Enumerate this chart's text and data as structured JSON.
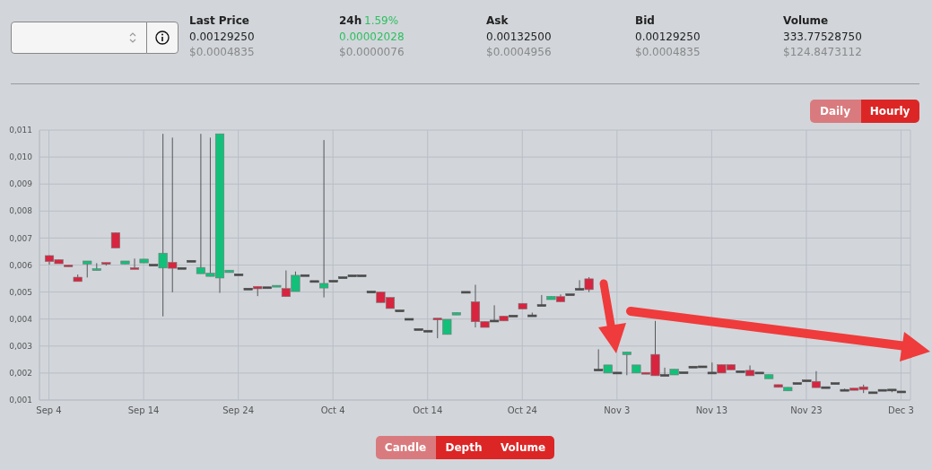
{
  "chart_data": {
    "type": "candlestick",
    "annotations": [
      "Last Price",
      "0.00129250",
      "$0.0004835",
      "24h",
      "1.59%",
      "0.00002028",
      "$0.0000076",
      "Ask",
      "0.00132500",
      "$0.0004956",
      "Bid",
      "0.00129250",
      "$0.0004835",
      "Volume",
      "333.77528750",
      "$124.8473112",
      "Daily",
      "Hourly",
      "Candle",
      "Depth",
      "Volume"
    ],
    "x": [
      "--09-04",
      "--09-05",
      "--09-06",
      "--09-07",
      "--09-08",
      "--09-09",
      "--09-10",
      "--09-11",
      "--09-12",
      "--09-13",
      "--09-14",
      "--09-15",
      "--09-16",
      "--09-17",
      "--09-18",
      "--09-19",
      "--09-20",
      "--09-21",
      "--09-22",
      "--09-23",
      "--09-24",
      "--09-25",
      "--09-26",
      "--09-27",
      "--09-28",
      "--09-29",
      "--09-30",
      "--10-01",
      "--10-02",
      "--10-03",
      "--10-04",
      "--10-05",
      "--10-06",
      "--10-07",
      "--10-08",
      "--10-09",
      "--10-10",
      "--10-11",
      "--10-12",
      "--10-13",
      "--10-14",
      "--10-15",
      "--10-16",
      "--10-17",
      "--10-18",
      "--10-19",
      "--10-20",
      "--10-21",
      "--10-22",
      "--10-23",
      "--10-24",
      "--10-25",
      "--10-26",
      "--10-27",
      "--10-28",
      "--10-29",
      "--10-30",
      "--10-31",
      "--11-01",
      "--11-02",
      "--11-03",
      "--11-04",
      "--11-05",
      "--11-06",
      "--11-07",
      "--11-08",
      "--11-09",
      "--11-10",
      "--11-11",
      "--11-12",
      "--11-13",
      "--11-14",
      "--11-15",
      "--11-16",
      "--11-17",
      "--11-18",
      "--11-19",
      "--11-20",
      "--11-21",
      "--11-22",
      "--11-23",
      "--11-24",
      "--11-25",
      "--11-26",
      "--11-27",
      "--11-28",
      "--11-29",
      "--11-30",
      "--12-01",
      "--12-02",
      "--12-03"
    ],
    "ohlc": [
      [
        0.00635,
        0.00636,
        0.00602,
        0.00613
      ],
      [
        0.0062,
        0.0062,
        0.00605,
        0.00605
      ],
      [
        0.006,
        0.006,
        0.00594,
        0.00594
      ],
      [
        0.00555,
        0.00565,
        0.00539,
        0.00539
      ],
      [
        0.00604,
        0.00615,
        0.00554,
        0.00615
      ],
      [
        0.0058,
        0.00607,
        0.0058,
        0.00586
      ],
      [
        0.00609,
        0.00609,
        0.00598,
        0.00603
      ],
      [
        0.0072,
        0.0072,
        0.00663,
        0.00663
      ],
      [
        0.00604,
        0.00615,
        0.00604,
        0.00615
      ],
      [
        0.00589,
        0.00624,
        0.00585,
        0.00585
      ],
      [
        0.00608,
        0.00622,
        0.00608,
        0.00622
      ],
      [
        0.006,
        0.006,
        0.00599,
        0.00599
      ],
      [
        0.00589,
        0.01086,
        0.0041,
        0.00644
      ],
      [
        0.0061,
        0.01072,
        0.00499,
        0.00588
      ],
      [
        0.00588,
        0.00588,
        0.00587,
        0.00587
      ],
      [
        0.00614,
        0.00614,
        0.00614,
        0.00614
      ],
      [
        0.00568,
        0.01086,
        0.00568,
        0.00591
      ],
      [
        0.00558,
        0.01072,
        0.00558,
        0.0057
      ],
      [
        0.00552,
        0.01086,
        0.00497,
        0.01086
      ],
      [
        0.00572,
        0.00581,
        0.00572,
        0.00581
      ],
      [
        0.00564,
        0.00564,
        0.00564,
        0.00564
      ],
      [
        0.00511,
        0.00511,
        0.00511,
        0.00511
      ],
      [
        0.00521,
        0.00521,
        0.00485,
        0.00512
      ],
      [
        0.00516,
        0.00516,
        0.00516,
        0.00516
      ],
      [
        0.00519,
        0.00524,
        0.00519,
        0.00524
      ],
      [
        0.00513,
        0.0058,
        0.00483,
        0.00483
      ],
      [
        0.00502,
        0.00576,
        0.00502,
        0.00562
      ],
      [
        0.00561,
        0.00561,
        0.00561,
        0.00561
      ],
      [
        0.00539,
        0.00539,
        0.00539,
        0.00539
      ],
      [
        0.00515,
        0.01063,
        0.0048,
        0.00532
      ],
      [
        0.0054,
        0.0054,
        0.0054,
        0.0054
      ],
      [
        0.00553,
        0.00553,
        0.00553,
        0.00553
      ],
      [
        0.0056,
        0.0056,
        0.0056,
        0.0056
      ],
      [
        0.0056,
        0.0056,
        0.0056,
        0.0056
      ],
      [
        0.005,
        0.005,
        0.005,
        0.005
      ],
      [
        0.005,
        0.005,
        0.00461,
        0.00461
      ],
      [
        0.0048,
        0.0048,
        0.00439,
        0.00439
      ],
      [
        0.0043,
        0.0043,
        0.0043,
        0.0043
      ],
      [
        0.00399,
        0.00399,
        0.00399,
        0.00399
      ],
      [
        0.00361,
        0.00361,
        0.00361,
        0.00361
      ],
      [
        0.00355,
        0.00355,
        0.00355,
        0.00355
      ],
      [
        0.00402,
        0.00402,
        0.00329,
        0.00398
      ],
      [
        0.00343,
        0.00399,
        0.00343,
        0.00399
      ],
      [
        0.00415,
        0.00424,
        0.00415,
        0.00424
      ],
      [
        0.00499,
        0.00499,
        0.00499,
        0.00499
      ],
      [
        0.00464,
        0.00527,
        0.00369,
        0.0039
      ],
      [
        0.00391,
        0.00391,
        0.00369,
        0.00369
      ],
      [
        0.00392,
        0.00451,
        0.00392,
        0.00393
      ],
      [
        0.00411,
        0.00411,
        0.00393,
        0.00393
      ],
      [
        0.00411,
        0.00411,
        0.00411,
        0.00411
      ],
      [
        0.00458,
        0.00458,
        0.00437,
        0.00437
      ],
      [
        0.00412,
        0.00424,
        0.00412,
        0.00412
      ],
      [
        0.0045,
        0.00489,
        0.0045,
        0.0045
      ],
      [
        0.00472,
        0.00484,
        0.00472,
        0.00484
      ],
      [
        0.00483,
        0.00491,
        0.00464,
        0.00464
      ],
      [
        0.0049,
        0.0049,
        0.0049,
        0.0049
      ],
      [
        0.0051,
        0.00544,
        0.0051,
        0.0051
      ],
      [
        0.00549,
        0.00555,
        0.005,
        0.00509
      ],
      [
        0.00211,
        0.00288,
        0.00211,
        0.00211
      ],
      [
        0.002,
        0.0023,
        0.002,
        0.0023
      ],
      [
        0.002,
        0.002,
        0.002,
        0.002
      ],
      [
        0.00268,
        0.00278,
        0.00192,
        0.00278
      ],
      [
        0.002,
        0.0023,
        0.002,
        0.0023
      ],
      [
        0.00202,
        0.00202,
        0.00196,
        0.00196
      ],
      [
        0.00269,
        0.00393,
        0.0019,
        0.0019
      ],
      [
        0.00191,
        0.0022,
        0.00191,
        0.00191
      ],
      [
        0.00193,
        0.00214,
        0.00193,
        0.00214
      ],
      [
        0.00201,
        0.00201,
        0.00201,
        0.00201
      ],
      [
        0.00222,
        0.00222,
        0.00222,
        0.00222
      ],
      [
        0.00223,
        0.00223,
        0.00223,
        0.00223
      ],
      [
        0.002,
        0.00239,
        0.002,
        0.002
      ],
      [
        0.00231,
        0.00231,
        0.002,
        0.002
      ],
      [
        0.00231,
        0.00231,
        0.00212,
        0.00212
      ],
      [
        0.00205,
        0.00205,
        0.00205,
        0.00205
      ],
      [
        0.0021,
        0.00228,
        0.0019,
        0.0019
      ],
      [
        0.002,
        0.002,
        0.002,
        0.002
      ],
      [
        0.00179,
        0.00194,
        0.00179,
        0.00194
      ],
      [
        0.00157,
        0.00157,
        0.00147,
        0.00147
      ],
      [
        0.00134,
        0.00147,
        0.00134,
        0.00147
      ],
      [
        0.00161,
        0.00161,
        0.00161,
        0.00161
      ],
      [
        0.00171,
        0.00171,
        0.00171,
        0.00171
      ],
      [
        0.00169,
        0.00207,
        0.00146,
        0.00146
      ],
      [
        0.00146,
        0.00146,
        0.00146,
        0.00146
      ],
      [
        0.00161,
        0.00161,
        0.00161,
        0.00161
      ],
      [
        0.00136,
        0.00142,
        0.00136,
        0.00136
      ],
      [
        0.00144,
        0.00144,
        0.00136,
        0.00136
      ],
      [
        0.00149,
        0.00157,
        0.00126,
        0.00139
      ],
      [
        0.00127,
        0.00127,
        0.00127,
        0.00127
      ],
      [
        0.00136,
        0.00136,
        0.00136,
        0.00136
      ],
      [
        0.00137,
        0.00137,
        0.00129,
        0.00137
      ],
      [
        0.0013,
        0.0013,
        0.0013,
        0.0013
      ]
    ],
    "colors": [
      "#d8243f",
      "#d8243f",
      "#d8243f",
      "#d8243f",
      "#12c07a",
      "#12c07a",
      "#d8243f",
      "#d8243f",
      "#12c07a",
      "#d8243f",
      "#12c07a",
      "#4a4a4a",
      "#12c07a",
      "#d8243f",
      "#4a4a4a",
      "#4a4a4a",
      "#12c07a",
      "#12c07a",
      "#12c07a",
      "#12c07a",
      "#4a4a4a",
      "#4a4a4a",
      "#d8243f",
      "#4a4a4a",
      "#12c07a",
      "#d8243f",
      "#12c07a",
      "#4a4a4a",
      "#4a4a4a",
      "#12c07a",
      "#4a4a4a",
      "#4a4a4a",
      "#4a4a4a",
      "#4a4a4a",
      "#4a4a4a",
      "#d8243f",
      "#d8243f",
      "#4a4a4a",
      "#4a4a4a",
      "#4a4a4a",
      "#4a4a4a",
      "#d8243f",
      "#12c07a",
      "#12c07a",
      "#4a4a4a",
      "#d8243f",
      "#d8243f",
      "#4a4a4a",
      "#d8243f",
      "#4a4a4a",
      "#d8243f",
      "#4a4a4a",
      "#4a4a4a",
      "#12c07a",
      "#d8243f",
      "#4a4a4a",
      "#4a4a4a",
      "#d8243f",
      "#4a4a4a",
      "#12c07a",
      "#4a4a4a",
      "#12c07a",
      "#12c07a",
      "#d8243f",
      "#d8243f",
      "#4a4a4a",
      "#12c07a",
      "#4a4a4a",
      "#4a4a4a",
      "#4a4a4a",
      "#4a4a4a",
      "#d8243f",
      "#d8243f",
      "#4a4a4a",
      "#d8243f",
      "#4a4a4a",
      "#12c07a",
      "#d8243f",
      "#12c07a",
      "#4a4a4a",
      "#4a4a4a",
      "#d8243f",
      "#4a4a4a",
      "#4a4a4a",
      "#4a4a4a",
      "#d8243f",
      "#d8243f",
      "#4a4a4a",
      "#4a4a4a",
      "#4a4a4a",
      "#4a4a4a"
    ],
    "xlim": [
      "--09-03",
      "--12-04"
    ],
    "xticks": [
      {
        "value": "--09-04",
        "label": "Sep 4"
      },
      {
        "value": "--09-14",
        "label": "Sep 14"
      },
      {
        "value": "--09-24",
        "label": "Sep 24"
      },
      {
        "value": "--10-04",
        "label": "Oct 4"
      },
      {
        "value": "--10-14",
        "label": "Oct 14"
      },
      {
        "value": "--10-24",
        "label": "Oct 24"
      },
      {
        "value": "--11-03",
        "label": "Nov 3"
      },
      {
        "value": "--11-13",
        "label": "Nov 13"
      },
      {
        "value": "--11-23",
        "label": "Nov 23"
      },
      {
        "value": "--12-03",
        "label": "Dec 3"
      }
    ],
    "ylim": [
      0.001,
      0.011
    ],
    "yticks": [
      {
        "value": 0.001,
        "label": "0,001"
      },
      {
        "value": 0.002,
        "label": "0,002"
      },
      {
        "value": 0.003,
        "label": "0,003"
      },
      {
        "value": 0.004,
        "label": "0,004"
      },
      {
        "value": 0.005,
        "label": "0,005"
      },
      {
        "value": 0.006,
        "label": "0,006"
      },
      {
        "value": 0.007,
        "label": "0,007"
      },
      {
        "value": 0.008,
        "label": "0,008"
      },
      {
        "value": 0.009,
        "label": "0,009"
      },
      {
        "value": 0.01,
        "label": "0,010"
      },
      {
        "value": 0.011,
        "label": "0,011"
      }
    ],
    "grid": true
  }
}
